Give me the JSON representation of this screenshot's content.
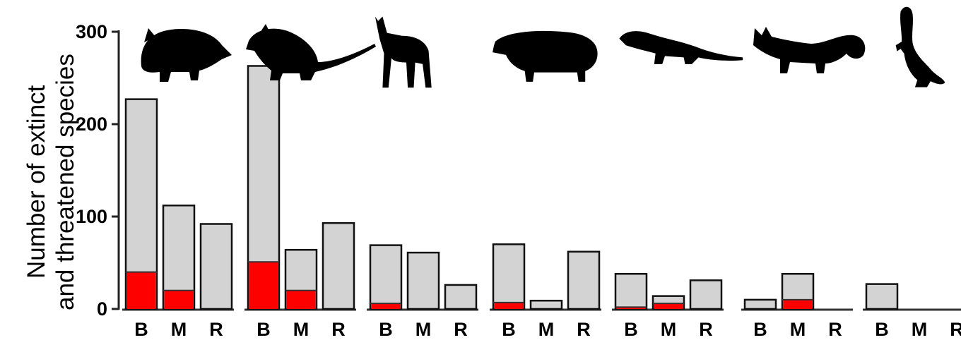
{
  "chart_data": {
    "type": "bar",
    "stacked": true,
    "ylabel_lines": [
      "Number of extinct",
      "and threatened species"
    ],
    "ylim": [
      0,
      300
    ],
    "yticks": [
      0,
      100,
      200,
      300
    ],
    "group_icons": [
      "lemur-silhouette",
      "rat-silhouette",
      "dog-silhouette",
      "pig-silhouette",
      "mongoose-silhouette",
      "fox-silhouette",
      "ferret-silhouette"
    ],
    "categories": [
      "B",
      "M",
      "R"
    ],
    "series_colors": {
      "extinct": "#ff0000",
      "threatened": "#d3d3d3"
    },
    "groups": [
      {
        "bars": [
          {
            "cat": "B",
            "extinct": 40,
            "threatened": 187
          },
          {
            "cat": "M",
            "extinct": 20,
            "threatened": 92
          },
          {
            "cat": "R",
            "extinct": 0,
            "threatened": 92
          }
        ]
      },
      {
        "bars": [
          {
            "cat": "B",
            "extinct": 51,
            "threatened": 212
          },
          {
            "cat": "M",
            "extinct": 20,
            "threatened": 44
          },
          {
            "cat": "R",
            "extinct": 0,
            "threatened": 93
          }
        ]
      },
      {
        "bars": [
          {
            "cat": "B",
            "extinct": 6,
            "threatened": 63
          },
          {
            "cat": "M",
            "extinct": 0,
            "threatened": 61
          },
          {
            "cat": "R",
            "extinct": 0,
            "threatened": 26
          }
        ]
      },
      {
        "bars": [
          {
            "cat": "B",
            "extinct": 7,
            "threatened": 63
          },
          {
            "cat": "M",
            "extinct": 0,
            "threatened": 9
          },
          {
            "cat": "R",
            "extinct": 0,
            "threatened": 62
          }
        ]
      },
      {
        "bars": [
          {
            "cat": "B",
            "extinct": 2,
            "threatened": 36
          },
          {
            "cat": "M",
            "extinct": 6,
            "threatened": 8
          },
          {
            "cat": "R",
            "extinct": 0,
            "threatened": 31
          }
        ]
      },
      {
        "bars": [
          {
            "cat": "B",
            "extinct": 0,
            "threatened": 10
          },
          {
            "cat": "M",
            "extinct": 10,
            "threatened": 28
          },
          {
            "cat": "R",
            "extinct": 0,
            "threatened": 0
          }
        ]
      },
      {
        "bars": [
          {
            "cat": "B",
            "extinct": 0,
            "threatened": 27
          },
          {
            "cat": "M",
            "extinct": 0,
            "threatened": 0
          },
          {
            "cat": "R",
            "extinct": 0,
            "threatened": 0
          }
        ]
      }
    ]
  }
}
